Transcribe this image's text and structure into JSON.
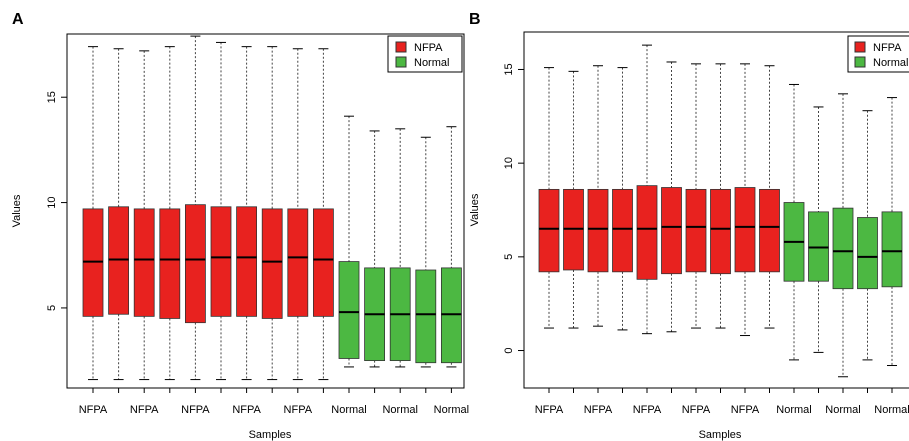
{
  "chart_data": [
    {
      "type": "boxplot",
      "panel_label": "A",
      "title": "",
      "xlabel": "Samples",
      "ylabel": "Values",
      "ylim": [
        1.2,
        18.0
      ],
      "yticks": [
        5,
        10,
        15
      ],
      "x_tick_labels": [
        "NFPA",
        "NFPA",
        "NFPA",
        "NFPA",
        "NFPA",
        "Normal",
        "Normal",
        "Normal"
      ],
      "legend": {
        "position": "top-right",
        "entries": [
          {
            "name": "NFPA",
            "color": "#e8221f"
          },
          {
            "name": "Normal",
            "color": "#4cb842"
          }
        ]
      },
      "grid": false,
      "series": [
        {
          "name": "NFPA",
          "color": "#e8221f",
          "boxes": [
            {
              "min": 1.6,
              "q1": 4.6,
              "median": 7.2,
              "q3": 9.7,
              "max": 17.4
            },
            {
              "min": 1.6,
              "q1": 4.7,
              "median": 7.3,
              "q3": 9.8,
              "max": 17.3
            },
            {
              "min": 1.6,
              "q1": 4.6,
              "median": 7.3,
              "q3": 9.7,
              "max": 17.2
            },
            {
              "min": 1.6,
              "q1": 4.5,
              "median": 7.3,
              "q3": 9.7,
              "max": 17.4
            },
            {
              "min": 1.6,
              "q1": 4.3,
              "median": 7.3,
              "q3": 9.9,
              "max": 17.9
            },
            {
              "min": 1.6,
              "q1": 4.6,
              "median": 7.4,
              "q3": 9.8,
              "max": 17.6
            },
            {
              "min": 1.6,
              "q1": 4.6,
              "median": 7.4,
              "q3": 9.8,
              "max": 17.4
            },
            {
              "min": 1.6,
              "q1": 4.5,
              "median": 7.2,
              "q3": 9.7,
              "max": 17.4
            },
            {
              "min": 1.6,
              "q1": 4.6,
              "median": 7.4,
              "q3": 9.7,
              "max": 17.3
            },
            {
              "min": 1.6,
              "q1": 4.6,
              "median": 7.3,
              "q3": 9.7,
              "max": 17.3
            }
          ]
        },
        {
          "name": "Normal",
          "color": "#4cb842",
          "boxes": [
            {
              "min": 2.2,
              "q1": 2.6,
              "median": 4.8,
              "q3": 7.2,
              "max": 14.1
            },
            {
              "min": 2.2,
              "q1": 2.5,
              "median": 4.7,
              "q3": 6.9,
              "max": 13.4
            },
            {
              "min": 2.2,
              "q1": 2.5,
              "median": 4.7,
              "q3": 6.9,
              "max": 13.5
            },
            {
              "min": 2.2,
              "q1": 2.4,
              "median": 4.7,
              "q3": 6.8,
              "max": 13.1
            },
            {
              "min": 2.2,
              "q1": 2.4,
              "median": 4.7,
              "q3": 6.9,
              "max": 13.6
            }
          ]
        }
      ]
    },
    {
      "type": "boxplot",
      "panel_label": "B",
      "title": "",
      "xlabel": "Samples",
      "ylabel": "Values",
      "ylim": [
        -2.0,
        17.0
      ],
      "yticks": [
        0,
        5,
        10,
        15
      ],
      "x_tick_labels": [
        "NFPA",
        "NFPA",
        "NFPA",
        "NFPA",
        "NFPA",
        "Normal",
        "Normal",
        "Normal"
      ],
      "legend": {
        "position": "top-right",
        "entries": [
          {
            "name": "NFPA",
            "color": "#e8221f"
          },
          {
            "name": "Normal",
            "color": "#4cb842"
          }
        ]
      },
      "grid": false,
      "series": [
        {
          "name": "NFPA",
          "color": "#e8221f",
          "boxes": [
            {
              "min": 1.2,
              "q1": 4.2,
              "median": 6.5,
              "q3": 8.6,
              "max": 15.1
            },
            {
              "min": 1.2,
              "q1": 4.3,
              "median": 6.5,
              "q3": 8.6,
              "max": 14.9
            },
            {
              "min": 1.3,
              "q1": 4.2,
              "median": 6.5,
              "q3": 8.6,
              "max": 15.2
            },
            {
              "min": 1.1,
              "q1": 4.2,
              "median": 6.5,
              "q3": 8.6,
              "max": 15.1
            },
            {
              "min": 0.9,
              "q1": 3.8,
              "median": 6.5,
              "q3": 8.8,
              "max": 16.3
            },
            {
              "min": 1.0,
              "q1": 4.1,
              "median": 6.6,
              "q3": 8.7,
              "max": 15.4
            },
            {
              "min": 1.2,
              "q1": 4.2,
              "median": 6.6,
              "q3": 8.6,
              "max": 15.3
            },
            {
              "min": 1.2,
              "q1": 4.1,
              "median": 6.5,
              "q3": 8.6,
              "max": 15.3
            },
            {
              "min": 0.8,
              "q1": 4.2,
              "median": 6.6,
              "q3": 8.7,
              "max": 15.3
            },
            {
              "min": 1.2,
              "q1": 4.2,
              "median": 6.6,
              "q3": 8.6,
              "max": 15.2
            }
          ]
        },
        {
          "name": "Normal",
          "color": "#4cb842",
          "boxes": [
            {
              "min": -0.5,
              "q1": 3.7,
              "median": 5.8,
              "q3": 7.9,
              "max": 14.2
            },
            {
              "min": -0.1,
              "q1": 3.7,
              "median": 5.5,
              "q3": 7.4,
              "max": 13.0
            },
            {
              "min": -1.4,
              "q1": 3.3,
              "median": 5.3,
              "q3": 7.6,
              "max": 13.7
            },
            {
              "min": -0.5,
              "q1": 3.3,
              "median": 5.0,
              "q3": 7.1,
              "max": 12.8
            },
            {
              "min": -0.8,
              "q1": 3.4,
              "median": 5.3,
              "q3": 7.4,
              "max": 13.5
            }
          ]
        }
      ]
    }
  ]
}
